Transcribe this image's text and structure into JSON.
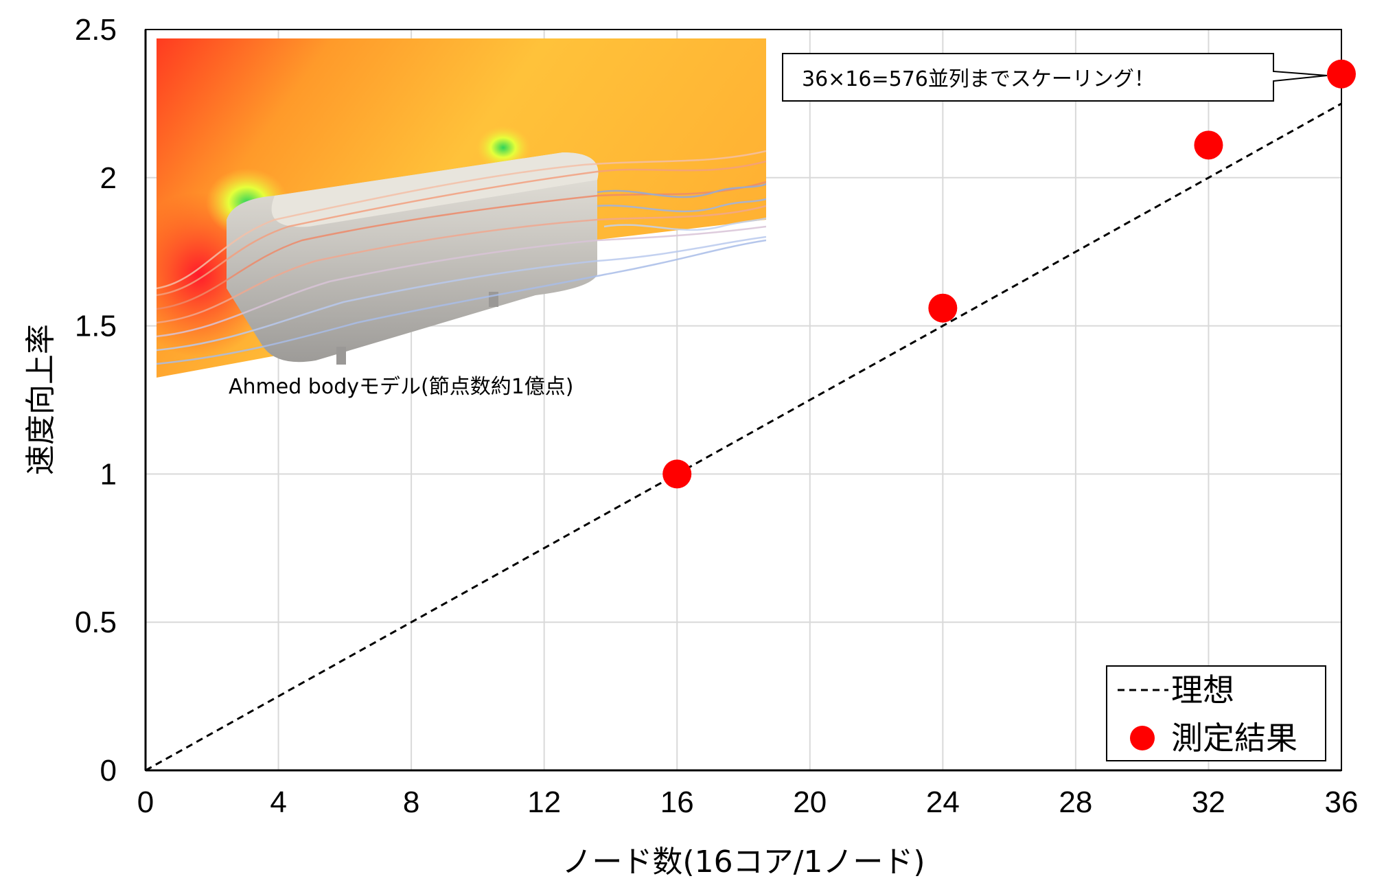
{
  "chart_data": {
    "type": "scatter",
    "xlabel": "ノード数(16コア/1ノード)",
    "ylabel": "速度向上率",
    "xlim": [
      0,
      36
    ],
    "ylim": [
      0,
      2.5
    ],
    "x_ticks": [
      0,
      4,
      8,
      12,
      16,
      20,
      24,
      28,
      32,
      36
    ],
    "y_ticks": [
      0,
      0.5,
      1,
      1.5,
      2,
      2.5
    ],
    "y_tick_labels": [
      "0",
      "0.5",
      "1",
      "1.5",
      "2",
      "2.5"
    ],
    "grid": true,
    "series": [
      {
        "name": "理想",
        "style": "dashed-line",
        "color": "#000000",
        "x": [
          0,
          36
        ],
        "y": [
          0,
          2.25
        ]
      },
      {
        "name": "測定結果",
        "style": "marker",
        "color": "#ff0000",
        "x": [
          16,
          24,
          32,
          36
        ],
        "y": [
          1.0,
          1.56,
          2.11,
          2.35
        ]
      }
    ],
    "legend_position": "bottom-right",
    "annotation": {
      "text": "36×16=576並列までスケーリング！",
      "points_to": [
        36,
        2.35
      ]
    },
    "inset": {
      "caption": "Ahmed bodyモデル(節点数約1億点)",
      "depicts": "flow-simulation-streamlines-around-body"
    }
  }
}
